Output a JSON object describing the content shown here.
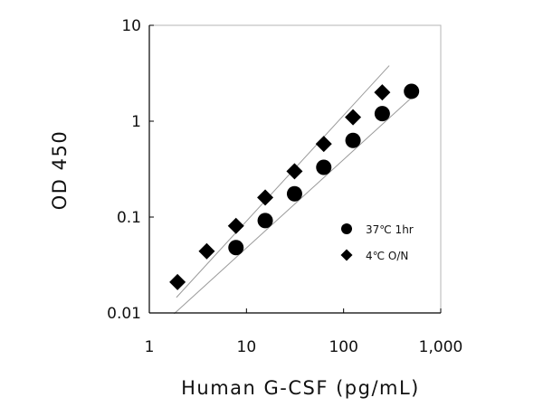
{
  "chart_data": {
    "type": "scatter",
    "xlabel": "Human G-CSF (pg/mL)",
    "ylabel": "OD 450",
    "x_scale": "log",
    "y_scale": "log",
    "xlim": [
      1,
      1000
    ],
    "ylim": [
      0.01,
      10
    ],
    "x_ticks": [
      1,
      10,
      100,
      1000
    ],
    "x_tick_labels": [
      "1",
      "10",
      "100",
      "1,000"
    ],
    "y_ticks": [
      0.01,
      0.1,
      1,
      10
    ],
    "y_tick_labels": [
      "0.01",
      "0.1",
      "1",
      "10"
    ],
    "grid": false,
    "legend_position": "right",
    "series": [
      {
        "name": "37℃ 1hr",
        "marker": "circle",
        "color": "#000000",
        "x": [
          7.8,
          15.6,
          31.25,
          62.5,
          125,
          250,
          500
        ],
        "y": [
          0.048,
          0.092,
          0.175,
          0.33,
          0.63,
          1.2,
          2.05
        ],
        "fit_line": {
          "x": [
            1.8,
            560
          ],
          "y": [
            0.0098,
            1.95
          ]
        }
      },
      {
        "name": "4℃ O/N",
        "marker": "diamond",
        "color": "#000000",
        "x": [
          1.95,
          3.9,
          7.8,
          15.6,
          31.25,
          62.5,
          125,
          250
        ],
        "y": [
          0.021,
          0.044,
          0.081,
          0.16,
          0.3,
          0.58,
          1.1,
          2.0
        ],
        "fit_line": {
          "x": [
            1.9,
            295
          ],
          "y": [
            0.0145,
            3.8
          ]
        }
      }
    ]
  }
}
